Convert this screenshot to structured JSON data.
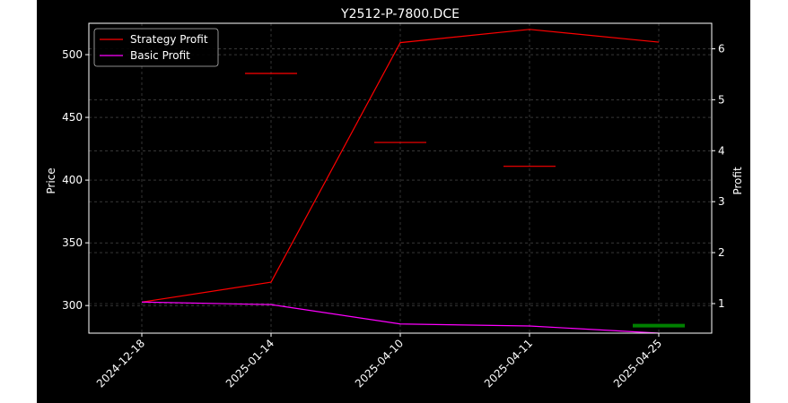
{
  "chart_data": {
    "type": "line",
    "title": "Y2512-P-7800.DCE",
    "ylabel_left": "Price",
    "ylabel_right": "Profit",
    "categories": [
      "2024-12-18",
      "2025-01-14",
      "2025-04-10",
      "2025-04-11",
      "2025-04-25"
    ],
    "left_axis": {
      "ylim": [
        278,
        525
      ],
      "ticks": [
        300,
        350,
        400,
        450,
        500
      ]
    },
    "right_axis": {
      "ylim": [
        0.42,
        6.5
      ],
      "ticks": [
        1,
        2,
        3,
        4,
        5,
        6
      ]
    },
    "series": [
      {
        "name": "Strategy Profit",
        "axis": "right",
        "color": "#ff0000",
        "values": [
          1.03,
          1.42,
          6.12,
          6.38,
          6.13
        ]
      },
      {
        "name": "Basic Profit",
        "axis": "right",
        "color": "#ff00ff",
        "values": [
          1.03,
          0.98,
          0.6,
          0.56,
          0.42
        ]
      }
    ],
    "price_marks": [
      {
        "x_index": 1,
        "price": 485,
        "color": "#ff0000"
      },
      {
        "x_index": 2,
        "price": 430,
        "color": "#ff0000"
      },
      {
        "x_index": 3,
        "price": 411,
        "color": "#ff0000"
      },
      {
        "x_index": 4,
        "price": 284,
        "color": "#008000"
      }
    ],
    "grid": true,
    "legend_position": "top-left"
  }
}
